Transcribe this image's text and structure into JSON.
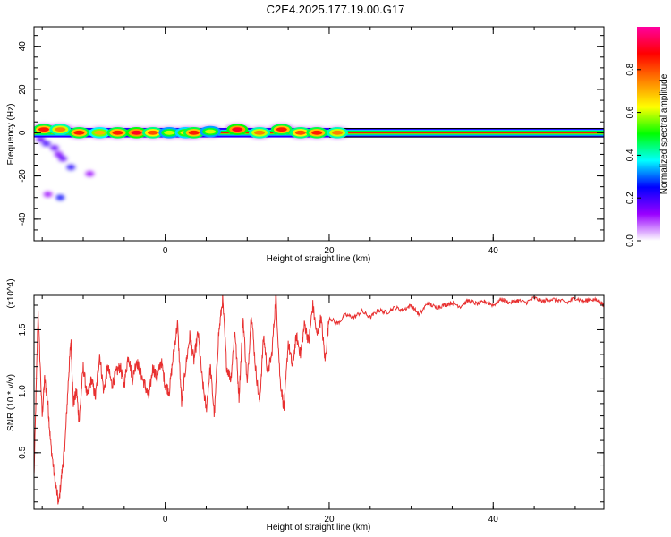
{
  "title": "C2E4.2025.177.19.00.G17",
  "chart_data": [
    {
      "type": "heatmap",
      "xlabel": "Height of straight line (km)",
      "ylabel": "Frequency (Hz)",
      "xlim": [
        -16,
        53.5
      ],
      "ylim": [
        -50,
        49
      ],
      "xticks": [
        "0",
        "20",
        "40"
      ],
      "yticks": [
        "-40",
        "-20",
        "0",
        "20",
        "40"
      ],
      "xtick_values": [
        0,
        20,
        40
      ],
      "ytick_values": [
        -40,
        -20,
        0,
        20,
        40
      ],
      "colorbar": {
        "label": "Normalized spectral amplitude",
        "range": [
          0,
          1
        ],
        "ticks": [
          "0.0",
          "0.2",
          "0.4",
          "0.6",
          "0.8"
        ],
        "tick_values": [
          0,
          0.2,
          0.4,
          0.6,
          0.8
        ],
        "colors": [
          "#ffffff",
          "#9900ff",
          "#0000ff",
          "#00ffff",
          "#00ff00",
          "#ffff00",
          "#ff8000",
          "#ff0000",
          "#ff00a0"
        ]
      },
      "main_band": {
        "x": [
          -16,
          53.5
        ],
        "y": 0,
        "half_width": 2
      },
      "blobs": [
        {
          "x": -14.8,
          "y": 1.5,
          "a": 0.85
        },
        {
          "x": -12.8,
          "y": 1.5,
          "a": 0.75
        },
        {
          "x": -10.5,
          "y": 0,
          "a": 0.85
        },
        {
          "x": -8,
          "y": 0,
          "a": 0.7
        },
        {
          "x": -5.8,
          "y": 0,
          "a": 0.85
        },
        {
          "x": -3.5,
          "y": 0,
          "a": 0.9
        },
        {
          "x": -1.5,
          "y": 0,
          "a": 0.8
        },
        {
          "x": 0.5,
          "y": 0,
          "a": 0.6
        },
        {
          "x": 2.5,
          "y": 0,
          "a": 0.65
        },
        {
          "x": 3.5,
          "y": 0,
          "a": 0.85
        },
        {
          "x": 5.5,
          "y": 0.5,
          "a": 0.6
        },
        {
          "x": 8.8,
          "y": 1.5,
          "a": 0.9
        },
        {
          "x": 11.5,
          "y": 0,
          "a": 0.75
        },
        {
          "x": 14.2,
          "y": 1.5,
          "a": 0.85
        },
        {
          "x": 16.5,
          "y": 0,
          "a": 0.8
        },
        {
          "x": 18.5,
          "y": 0,
          "a": 0.85
        },
        {
          "x": 21,
          "y": 0,
          "a": 0.75
        }
      ],
      "scatter_blobs": [
        {
          "x": -14.5,
          "y": -5,
          "a": 0.3
        },
        {
          "x": -13.5,
          "y": -7,
          "a": 0.25
        },
        {
          "x": -13,
          "y": -10,
          "a": 0.2
        },
        {
          "x": -12.5,
          "y": -12,
          "a": 0.25
        },
        {
          "x": -11.5,
          "y": -16,
          "a": 0.35
        },
        {
          "x": -12.8,
          "y": -30,
          "a": 0.4
        },
        {
          "x": -14.3,
          "y": -28.5,
          "a": 0.15
        },
        {
          "x": -9.2,
          "y": -19,
          "a": 0.15
        },
        {
          "x": -15.2,
          "y": -3,
          "a": 0.25
        }
      ]
    },
    {
      "type": "line",
      "xlabel": "Height of straight line (km)",
      "ylabel": "SNR (10 * v/v)",
      "yscale_label": "(x10^4)",
      "xlim": [
        -16,
        53.5
      ],
      "ylim": [
        0.04,
        1.78
      ],
      "xticks": [
        "0",
        "20",
        "40"
      ],
      "yticks": [
        "0.5",
        "1.0",
        "1.5"
      ],
      "xtick_values": [
        0,
        20,
        40
      ],
      "ytick_values": [
        0.5,
        1.0,
        1.5
      ],
      "series": [
        {
          "color": "#e83030",
          "x": [
            -16,
            -15.5,
            -15,
            -14.7,
            -14.3,
            -14,
            -13.5,
            -13,
            -12.5,
            -12.2,
            -11.8,
            -11.5,
            -11.2,
            -10.8,
            -10.5,
            -10,
            -9.5,
            -9,
            -8.5,
            -8,
            -7.5,
            -7,
            -6.5,
            -6,
            -5.5,
            -5,
            -4.5,
            -4,
            -3.5,
            -3,
            -2.5,
            -2,
            -1.5,
            -1,
            -0.5,
            0,
            0.5,
            1,
            1.5,
            2,
            2.5,
            3,
            3.5,
            4,
            4.5,
            5,
            5.5,
            6,
            6.5,
            7,
            7.5,
            8,
            8.5,
            9,
            9.5,
            10,
            10.5,
            11,
            11.5,
            12,
            12.5,
            13,
            13.5,
            14,
            14.5,
            15,
            15.5,
            16,
            16.5,
            17,
            17.5,
            18,
            18.5,
            19,
            19.5,
            20,
            21,
            22,
            23,
            24,
            25,
            26,
            27,
            28,
            29,
            30,
            31,
            32,
            33,
            34,
            35,
            36,
            37,
            38,
            39,
            40,
            41,
            42,
            43,
            44,
            45,
            46,
            47,
            48,
            49,
            50,
            51,
            52,
            53,
            53.5
          ],
          "y": [
            0.3,
            1.65,
            0.8,
            1.1,
            0.9,
            0.6,
            0.3,
            0.08,
            0.4,
            0.6,
            1.1,
            1.42,
            0.9,
            1.0,
            0.75,
            1.2,
            0.95,
            1.1,
            0.95,
            1.3,
            1.0,
            1.2,
            1.05,
            1.15,
            1.2,
            1.05,
            1.3,
            1.1,
            1.25,
            1.15,
            1.05,
            0.95,
            1.2,
            1.1,
            1.25,
            1.05,
            1.0,
            1.3,
            1.55,
            0.9,
            1.2,
            1.45,
            1.25,
            1.48,
            1.1,
            0.85,
            1.2,
            0.8,
            1.45,
            1.75,
            1.2,
            1.1,
            1.5,
            0.95,
            1.6,
            1.05,
            1.65,
            1.2,
            0.9,
            1.45,
            1.15,
            1.3,
            1.78,
            1.1,
            0.85,
            1.4,
            1.2,
            1.45,
            1.3,
            1.55,
            1.4,
            1.7,
            1.45,
            1.6,
            1.25,
            1.6,
            1.55,
            1.62,
            1.6,
            1.65,
            1.6,
            1.66,
            1.64,
            1.68,
            1.66,
            1.7,
            1.62,
            1.72,
            1.68,
            1.7,
            1.72,
            1.69,
            1.74,
            1.71,
            1.73,
            1.7,
            1.75,
            1.72,
            1.74,
            1.72,
            1.76,
            1.73,
            1.75,
            1.74,
            1.72,
            1.76,
            1.73,
            1.75,
            1.73,
            1.7
          ]
        }
      ]
    }
  ]
}
